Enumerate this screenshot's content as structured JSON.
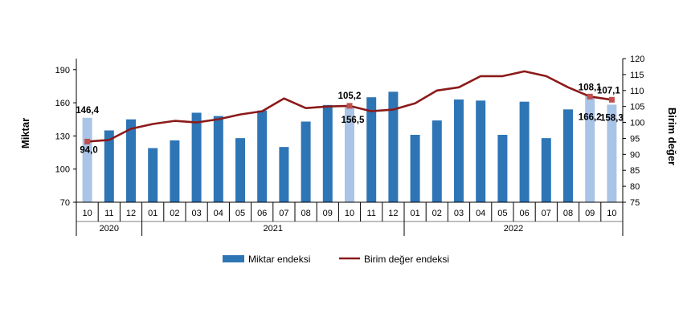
{
  "chart_data": {
    "type": "bar",
    "title": "",
    "ylabel_left": "Miktar",
    "ylabel_right": "Birim değer",
    "ylim_left": [
      70,
      200
    ],
    "yticks_left": [
      "70",
      "100",
      "130",
      "160",
      "190"
    ],
    "ylim_right": [
      75,
      120
    ],
    "yticks_right": [
      "75",
      "80",
      "85",
      "90",
      "95",
      "100",
      "105",
      "110",
      "115",
      "120"
    ],
    "categories": [
      "10",
      "11",
      "12",
      "01",
      "02",
      "03",
      "04",
      "05",
      "06",
      "07",
      "08",
      "09",
      "10",
      "11",
      "12",
      "01",
      "02",
      "03",
      "04",
      "05",
      "06",
      "07",
      "08",
      "09",
      "10"
    ],
    "year_groups": [
      {
        "label": "2020",
        "start": 0,
        "end": 2
      },
      {
        "label": "2021",
        "start": 3,
        "end": 14
      },
      {
        "label": "2022",
        "start": 15,
        "end": 24
      }
    ],
    "highlight_indices": [
      0,
      12,
      23,
      24
    ],
    "colors": {
      "bar": "#2E75B6",
      "bar_highlight": "#A9C4E6",
      "line": "#8B1A1A",
      "marker": "#C0504D",
      "axis": "#000000"
    },
    "series": [
      {
        "name": "Miktar endeksi",
        "type": "bar",
        "axis": "left",
        "values": [
          146.4,
          135,
          145,
          119,
          126,
          151,
          148,
          128,
          153,
          120,
          143,
          158,
          156.5,
          165,
          170,
          131,
          144,
          163,
          162,
          131,
          161,
          128,
          154,
          166.2,
          158.3
        ]
      },
      {
        "name": "Birim değer endeksi",
        "type": "line",
        "axis": "right",
        "values": [
          94.0,
          94.5,
          98,
          99.5,
          100.5,
          100,
          101,
          102.5,
          103.5,
          107.5,
          104.5,
          105,
          105.2,
          103.5,
          104,
          106,
          110,
          111,
          114.5,
          114.5,
          116,
          114.5,
          111,
          108.1,
          107.1
        ]
      }
    ],
    "data_labels": [
      {
        "text": "146,4",
        "series": 0,
        "index": 0
      },
      {
        "text": "94,0",
        "series": 1,
        "index": 0
      },
      {
        "text": "105,2",
        "series": 1,
        "index": 12
      },
      {
        "text": "156,5",
        "series": 0,
        "index": 12
      },
      {
        "text": "108,1",
        "series": 1,
        "index": 23
      },
      {
        "text": "166,2",
        "series": 0,
        "index": 23
      },
      {
        "text": "107,1",
        "series": 1,
        "index": 24
      },
      {
        "text": "158,3",
        "series": 0,
        "index": 24
      }
    ],
    "marker_indices": [
      0,
      12,
      23,
      24
    ],
    "legend": {
      "placement": "bottom-center",
      "items": [
        "Miktar endeksi",
        "Birim değer endeksi"
      ]
    },
    "grid": false
  }
}
